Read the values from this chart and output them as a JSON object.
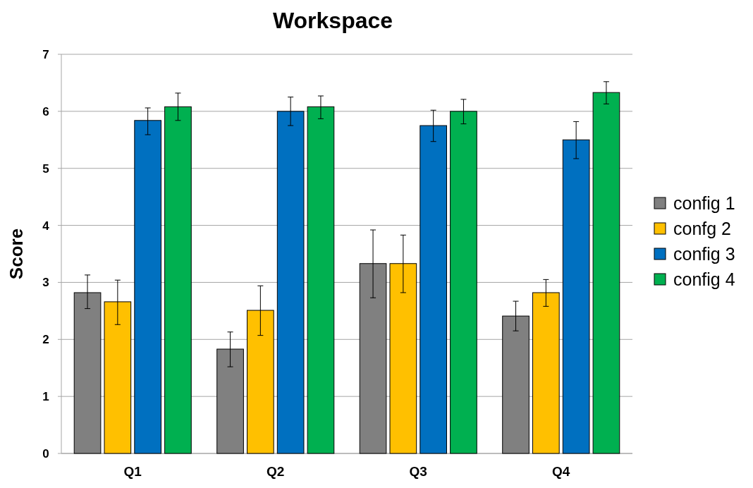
{
  "chart_data": {
    "type": "bar",
    "title": "Workspace",
    "ylabel": "Score",
    "categories": [
      "Q1",
      "Q2",
      "Q3",
      "Q4"
    ],
    "ylim": [
      0,
      7
    ],
    "yticks": [
      0,
      1,
      2,
      3,
      4,
      5,
      6,
      7
    ],
    "grid": "y",
    "legend": "right",
    "series": [
      {
        "name": "config 1",
        "color": "#808080",
        "values": [
          2.82,
          1.83,
          3.33,
          2.41
        ],
        "errors": [
          [
            2.54,
            3.13
          ],
          [
            1.52,
            2.13
          ],
          [
            2.73,
            3.92
          ],
          [
            2.15,
            2.67
          ]
        ]
      },
      {
        "name": "confg 2",
        "color": "#ffc000",
        "values": [
          2.66,
          2.51,
          3.33,
          2.82
        ],
        "errors": [
          [
            2.26,
            3.04
          ],
          [
            2.07,
            2.94
          ],
          [
            2.82,
            3.83
          ],
          [
            2.58,
            3.05
          ]
        ]
      },
      {
        "name": "config 3",
        "color": "#0070c0",
        "values": [
          5.84,
          6.0,
          5.75,
          5.5
        ],
        "errors": [
          [
            5.59,
            6.06
          ],
          [
            5.75,
            6.25
          ],
          [
            5.47,
            6.02
          ],
          [
            5.17,
            5.82
          ]
        ]
      },
      {
        "name": "config 4",
        "color": "#00b050",
        "values": [
          6.08,
          6.08,
          6.0,
          6.33
        ],
        "errors": [
          [
            5.84,
            6.32
          ],
          [
            5.87,
            6.27
          ],
          [
            5.78,
            6.21
          ],
          [
            6.13,
            6.52
          ]
        ]
      }
    ]
  }
}
